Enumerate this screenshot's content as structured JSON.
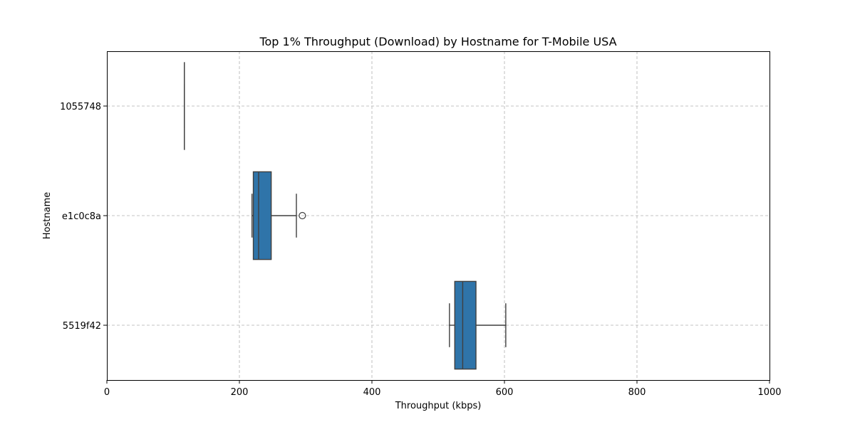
{
  "chart_data": {
    "type": "box",
    "orientation": "horizontal",
    "title": "Top 1% Throughput (Download) by Hostname for T-Mobile USA",
    "xlabel": "Throughput (kbps)",
    "ylabel": "Hostname",
    "xlim": [
      0,
      1000
    ],
    "xticks": [
      "0",
      "200",
      "400",
      "600",
      "800",
      "1000"
    ],
    "xtick_values": [
      0,
      200,
      400,
      600,
      800,
      1000
    ],
    "grid": true,
    "box_color": "#2f74a9",
    "categories": [
      "1055748",
      "e1c0c8a",
      "5519f42"
    ],
    "boxes": [
      {
        "category": "1055748",
        "whislo": 117,
        "q1": 117,
        "med": 117,
        "q3": 117,
        "whishi": 117,
        "fliers": []
      },
      {
        "category": "e1c0c8a",
        "whislo": 219,
        "q1": 221,
        "med": 229,
        "q3": 248,
        "whishi": 286,
        "fliers": [
          295
        ]
      },
      {
        "category": "5519f42",
        "whislo": 517,
        "q1": 525,
        "med": 537,
        "q3": 557,
        "whishi": 602,
        "fliers": []
      }
    ]
  }
}
